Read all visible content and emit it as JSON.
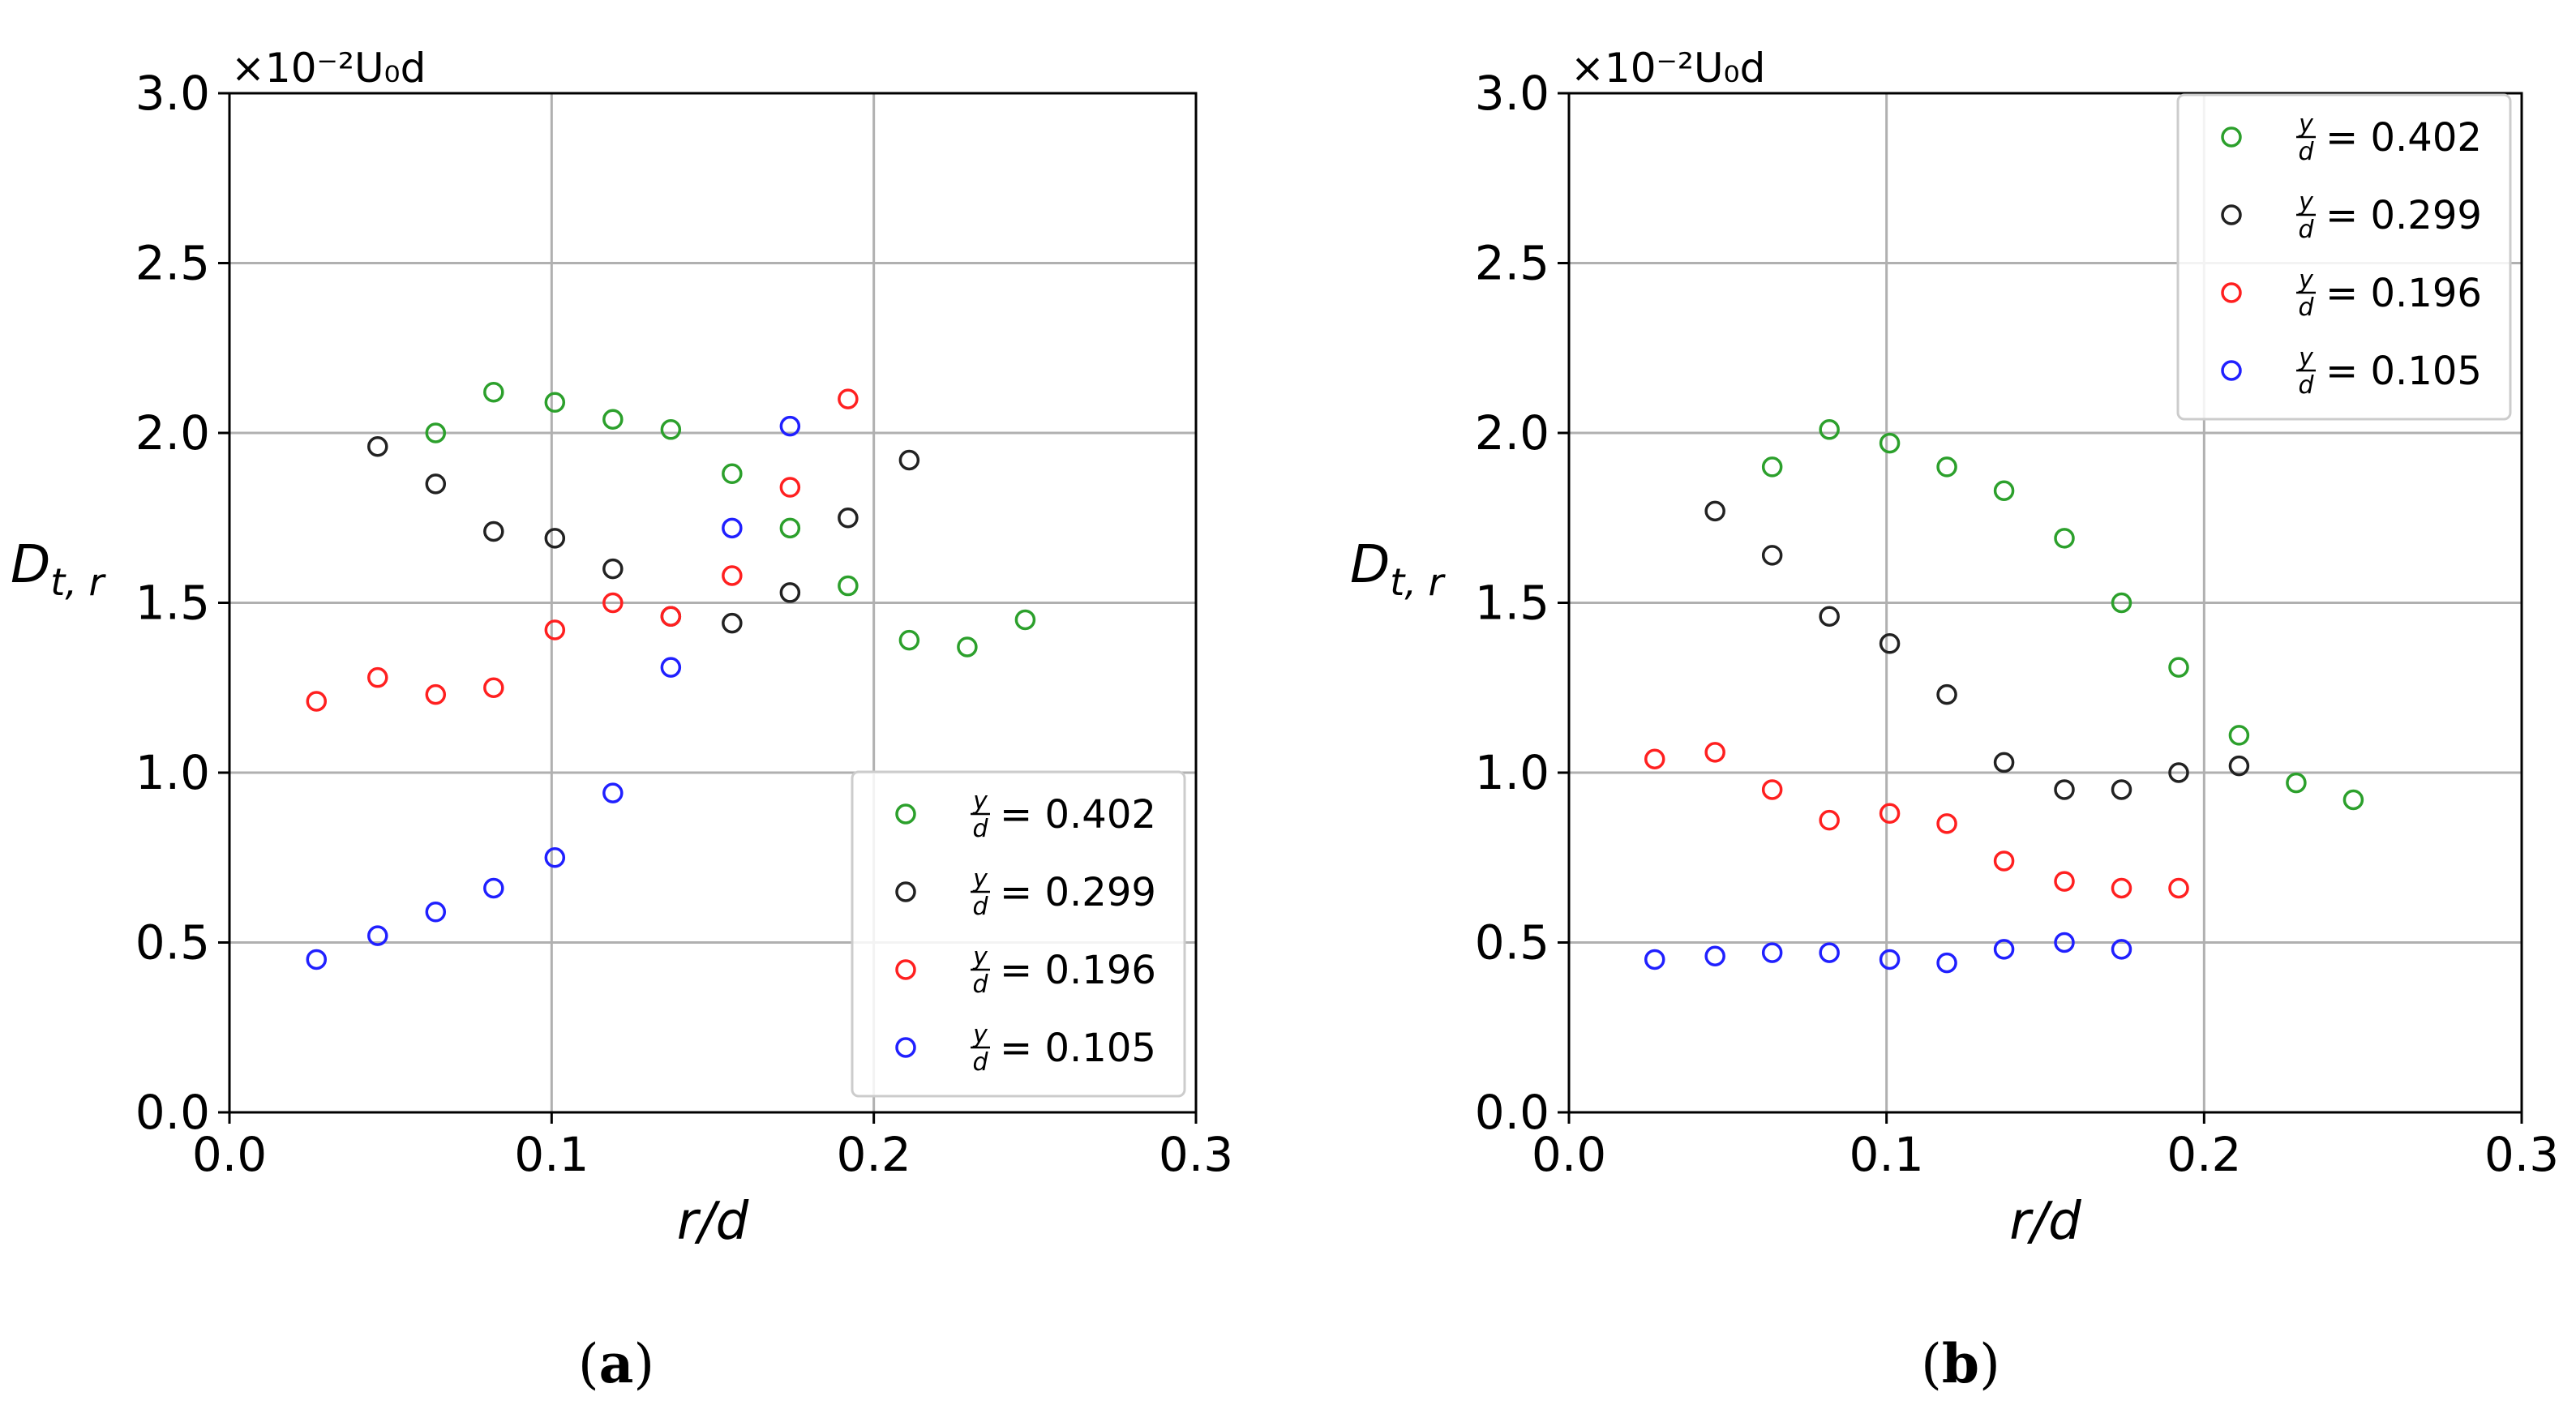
{
  "chart_data": [
    {
      "type": "scatter",
      "panel_label": "a",
      "caption_prefix": "(",
      "caption_suffix": ")",
      "xlabel": "r/d",
      "ylabel_main": "D",
      "ylabel_sub": "t, r",
      "scale_label": "×10⁻²U₀d",
      "xlim": [
        0.0,
        0.3
      ],
      "ylim": [
        0.0,
        3.0
      ],
      "xticks": [
        "0.0",
        "0.1",
        "0.2",
        "0.3"
      ],
      "yticks": [
        "0.0",
        "0.5",
        "1.0",
        "1.5",
        "2.0",
        "2.5",
        "3.0"
      ],
      "grid": true,
      "legend_position": "lower-right",
      "series": [
        {
          "name": "y/d = 0.402",
          "frac_num": "y",
          "frac_den": "d",
          "value_text": "= 0.402",
          "color": "#2ca02c",
          "x": [
            0.064,
            0.082,
            0.101,
            0.119,
            0.137,
            0.156,
            0.174,
            0.192,
            0.211,
            0.229,
            0.247
          ],
          "y": [
            2.0,
            2.12,
            2.09,
            2.04,
            2.01,
            1.88,
            1.72,
            1.55,
            1.39,
            1.37,
            1.45
          ]
        },
        {
          "name": "y/d = 0.299",
          "frac_num": "y",
          "frac_den": "d",
          "value_text": "= 0.299",
          "color": "#222222",
          "x": [
            0.046,
            0.064,
            0.082,
            0.101,
            0.119,
            0.137,
            0.156,
            0.174,
            0.192,
            0.211
          ],
          "y": [
            1.96,
            1.85,
            1.71,
            1.69,
            1.6,
            1.46,
            1.44,
            1.53,
            1.75,
            1.92
          ]
        },
        {
          "name": "y/d = 0.196",
          "frac_num": "y",
          "frac_den": "d",
          "value_text": "= 0.196",
          "color": "#ff2020",
          "x": [
            0.027,
            0.046,
            0.064,
            0.082,
            0.101,
            0.119,
            0.137,
            0.156,
            0.174,
            0.192
          ],
          "y": [
            1.21,
            1.28,
            1.23,
            1.25,
            1.42,
            1.5,
            1.46,
            1.58,
            1.84,
            2.1
          ]
        },
        {
          "name": "y/d = 0.105",
          "frac_num": "y",
          "frac_den": "d",
          "value_text": "= 0.105",
          "color": "#2020ff",
          "x": [
            0.027,
            0.046,
            0.064,
            0.082,
            0.101,
            0.119,
            0.137,
            0.156,
            0.174
          ],
          "y": [
            0.45,
            0.52,
            0.59,
            0.66,
            0.75,
            0.94,
            1.31,
            1.72,
            2.02
          ]
        }
      ]
    },
    {
      "type": "scatter",
      "panel_label": "b",
      "caption_prefix": "(",
      "caption_suffix": ")",
      "xlabel": "r/d",
      "ylabel_main": "D",
      "ylabel_sub": "t, r",
      "scale_label": "×10⁻²U₀d",
      "xlim": [
        0.0,
        0.3
      ],
      "ylim": [
        0.0,
        3.0
      ],
      "xticks": [
        "0.0",
        "0.1",
        "0.2",
        "0.3"
      ],
      "yticks": [
        "0.0",
        "0.5",
        "1.0",
        "1.5",
        "2.0",
        "2.5",
        "3.0"
      ],
      "grid": true,
      "legend_position": "upper-right",
      "series": [
        {
          "name": "y/d = 0.402",
          "frac_num": "y",
          "frac_den": "d",
          "value_text": "= 0.402",
          "color": "#2ca02c",
          "x": [
            0.064,
            0.082,
            0.101,
            0.119,
            0.137,
            0.156,
            0.174,
            0.192,
            0.211,
            0.229,
            0.247
          ],
          "y": [
            1.9,
            2.01,
            1.97,
            1.9,
            1.83,
            1.69,
            1.5,
            1.31,
            1.11,
            0.97,
            0.92
          ]
        },
        {
          "name": "y/d = 0.299",
          "frac_num": "y",
          "frac_den": "d",
          "value_text": "= 0.299",
          "color": "#222222",
          "x": [
            0.046,
            0.064,
            0.082,
            0.101,
            0.119,
            0.137,
            0.156,
            0.174,
            0.192,
            0.211
          ],
          "y": [
            1.77,
            1.64,
            1.46,
            1.38,
            1.23,
            1.03,
            0.95,
            0.95,
            1.0,
            1.02
          ]
        },
        {
          "name": "y/d = 0.196",
          "frac_num": "y",
          "frac_den": "d",
          "value_text": "= 0.196",
          "color": "#ff2020",
          "x": [
            0.027,
            0.046,
            0.064,
            0.082,
            0.101,
            0.119,
            0.137,
            0.156,
            0.174,
            0.192
          ],
          "y": [
            1.04,
            1.06,
            0.95,
            0.86,
            0.88,
            0.85,
            0.74,
            0.68,
            0.66,
            0.66
          ]
        },
        {
          "name": "y/d = 0.105",
          "frac_num": "y",
          "frac_den": "d",
          "value_text": "= 0.105",
          "color": "#2020ff",
          "x": [
            0.027,
            0.046,
            0.064,
            0.082,
            0.101,
            0.119,
            0.137,
            0.156,
            0.174
          ],
          "y": [
            0.45,
            0.46,
            0.47,
            0.47,
            0.45,
            0.44,
            0.48,
            0.5,
            0.48
          ]
        }
      ]
    }
  ]
}
